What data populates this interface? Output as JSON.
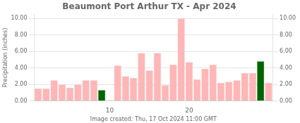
{
  "chart_data": {
    "type": "bar",
    "title": "Beaumont Port Arthur TX - Apr 2024",
    "ylabel": "Precipitation (inches)",
    "xlabel": "Image created: Thu, 17 Oct 2024 11:00 GMT",
    "x": [
      1,
      2,
      3,
      4,
      5,
      6,
      7,
      8,
      9,
      10,
      11,
      12,
      13,
      14,
      15,
      16,
      17,
      18,
      19,
      20,
      21,
      22,
      23,
      24,
      25,
      26,
      27,
      28,
      29,
      30
    ],
    "values": [
      1.5,
      1.5,
      2.5,
      2.0,
      1.6,
      2.0,
      2.5,
      2.5,
      1.3,
      0.1,
      4.3,
      3.0,
      2.8,
      5.8,
      3.7,
      5.8,
      1.9,
      4.4,
      10.0,
      4.7,
      2.6,
      3.9,
      4.4,
      2.2,
      2.3,
      2.5,
      3.4,
      3.4,
      4.8,
      2.2
    ],
    "colors": [
      "#FFB6B6",
      "#FFB6B6",
      "#FFB6B6",
      "#FFB6B6",
      "#FFB6B6",
      "#FFB6B6",
      "#FFB6B6",
      "#FFB6B6",
      "#006400",
      "#FFB6B6",
      "#FFB6B6",
      "#FFB6B6",
      "#FFB6B6",
      "#FFB6B6",
      "#FFB6B6",
      "#FFB6B6",
      "#FFB6B6",
      "#FFB6B6",
      "#FFB6B6",
      "#FFB6B6",
      "#FFB6B6",
      "#FFB6B6",
      "#FFB6B6",
      "#FFB6B6",
      "#FFB6B6",
      "#FFB6B6",
      "#FFB6B6",
      "#FFB6B6",
      "#006400",
      "#FFB6B6"
    ],
    "xlim": [
      0.5,
      30.5
    ],
    "xticks": [
      10,
      20
    ],
    "ylim": [
      0.0,
      10.5
    ],
    "yticks": [
      {
        "value": 0.0,
        "label": "0.00"
      },
      {
        "value": 2.0,
        "label": "2.00"
      },
      {
        "value": 4.0,
        "label": "4.00"
      },
      {
        "value": 6.0,
        "label": "6.00"
      },
      {
        "value": 8.0,
        "label": "8.00"
      },
      {
        "value": 10.0,
        "label": "10.00"
      }
    ],
    "y2lim": [
      0.0,
      10.5
    ],
    "y2ticks": [
      {
        "value": 0.0,
        "label": "0.00"
      },
      {
        "value": 2.0,
        "label": "2.00"
      },
      {
        "value": 4.0,
        "label": "4.00"
      },
      {
        "value": 6.0,
        "label": "6.00"
      },
      {
        "value": 8.0,
        "label": "8.00"
      },
      {
        "value": 10.0,
        "label": "10.00"
      }
    ],
    "grid": true
  }
}
